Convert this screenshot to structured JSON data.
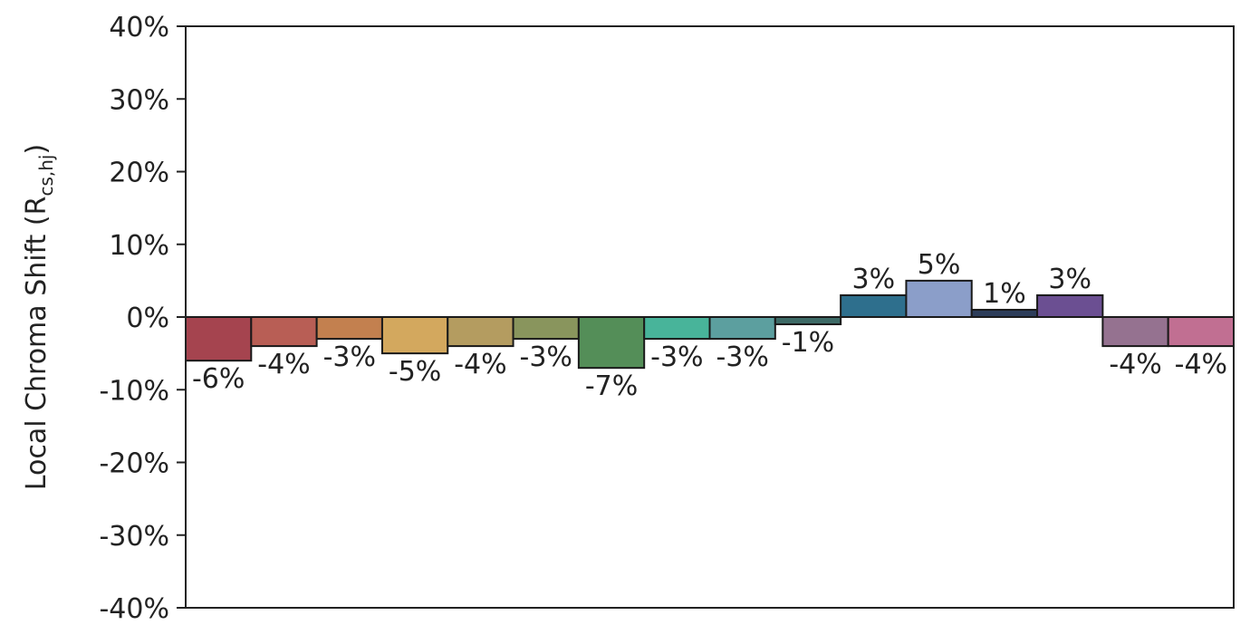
{
  "chart_data": {
    "type": "bar",
    "ylabel": "Local Chroma Shift (R",
    "ylabel_subscript": "cs,hj",
    "ylabel_suffix": ")",
    "ylim": [
      -40,
      40
    ],
    "yticks": [
      40,
      30,
      20,
      10,
      0,
      -10,
      -20,
      -30,
      -40
    ],
    "ytick_labels": [
      "40%",
      "30%",
      "20%",
      "10%",
      "0%",
      "-10%",
      "-20%",
      "-30%",
      "-40%"
    ],
    "grid": false,
    "values": [
      -6,
      -4,
      -3,
      -5,
      -4,
      -3,
      -7,
      -3,
      -3,
      -1,
      3,
      5,
      1,
      3,
      -4,
      -4
    ],
    "data_labels": [
      "-6%",
      "-4%",
      "-3%",
      "-5%",
      "-4%",
      "-3%",
      "-7%",
      "-3%",
      "-3%",
      "-1%",
      "3%",
      "5%",
      "1%",
      "3%",
      "-4%",
      "-4%"
    ],
    "colors": [
      "#a5444f",
      "#b85e55",
      "#c3804f",
      "#d3a85e",
      "#b49c60",
      "#89955d",
      "#548e58",
      "#48b49a",
      "#5c9f9f",
      "#3d6a66",
      "#2e6f8d",
      "#8b9ec9",
      "#2d3d5a",
      "#6b4f92",
      "#957290",
      "#c16f92"
    ]
  }
}
